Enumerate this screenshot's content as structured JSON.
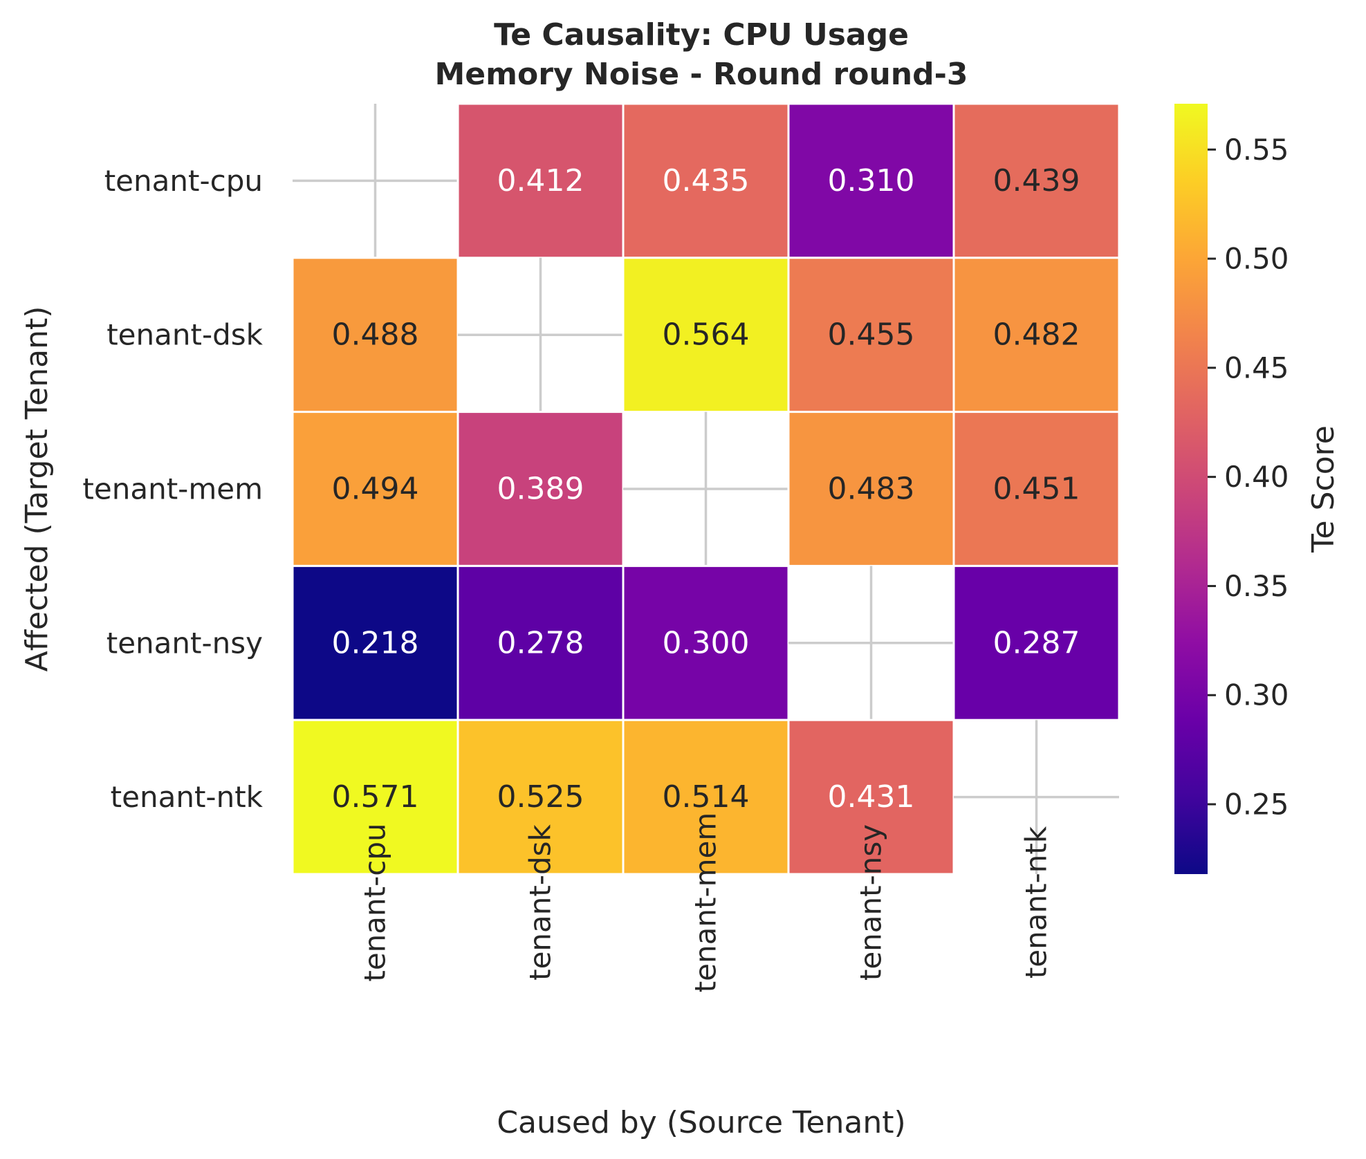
{
  "chart_data": {
    "type": "heatmap",
    "title_lines": [
      "Te Causality: CPU Usage",
      "Memory Noise - Round round-3"
    ],
    "xlabel": "Caused by (Source Tenant)",
    "ylabel": "Affected (Target Tenant)",
    "x_categories": [
      "tenant-cpu",
      "tenant-dsk",
      "tenant-mem",
      "tenant-nsy",
      "tenant-ntk"
    ],
    "y_categories": [
      "tenant-cpu",
      "tenant-dsk",
      "tenant-mem",
      "tenant-nsy",
      "tenant-ntk"
    ],
    "values": [
      [
        null,
        0.412,
        0.435,
        0.31,
        0.439
      ],
      [
        0.488,
        null,
        0.564,
        0.455,
        0.482
      ],
      [
        0.494,
        0.389,
        null,
        0.483,
        0.451
      ],
      [
        0.218,
        0.278,
        0.3,
        null,
        0.287
      ],
      [
        0.571,
        0.525,
        0.514,
        0.431,
        null
      ]
    ],
    "value_labels": [
      [
        "",
        "0.412",
        "0.435",
        "0.310",
        "0.439"
      ],
      [
        "0.488",
        "",
        "0.564",
        "0.455",
        "0.482"
      ],
      [
        "0.494",
        "0.389",
        "",
        "0.483",
        "0.451"
      ],
      [
        "0.218",
        "0.278",
        "0.300",
        "",
        "0.287"
      ],
      [
        "0.571",
        "0.525",
        "0.514",
        "0.431",
        ""
      ]
    ],
    "colormap": "plasma",
    "color_range": [
      0.218,
      0.571
    ],
    "colorbar": {
      "label": "Te Score",
      "ticks": [
        0.25,
        0.3,
        0.35,
        0.4,
        0.45,
        0.5,
        0.55
      ],
      "tick_labels": [
        "0.25",
        "0.30",
        "0.35",
        "0.40",
        "0.45",
        "0.50",
        "0.55"
      ]
    },
    "diagonal": "masked"
  }
}
